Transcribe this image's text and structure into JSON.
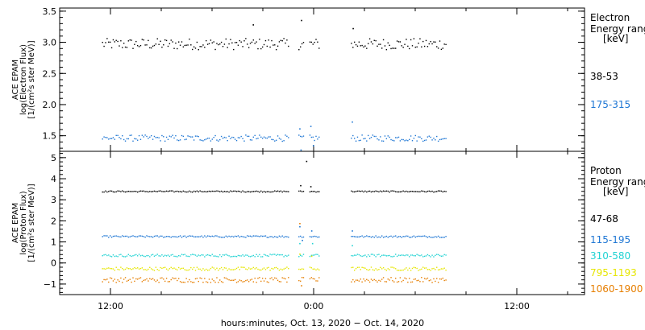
{
  "chart_data": [
    {
      "type": "scatter",
      "panel": "electron",
      "ylabel_lines": [
        "ACE EPAM",
        "log(Electron Flux)",
        "[1/(cm²s ster MeV)]"
      ],
      "ylim": [
        1.25,
        3.55
      ],
      "yticks": [
        1.5,
        2.0,
        2.5,
        3.0,
        3.5
      ],
      "ytick_labels": [
        "1.5",
        "2.0",
        "2.5",
        "3.0",
        "3.5"
      ],
      "legend_title": [
        "Electron",
        "Energy range",
        "[keV]"
      ],
      "series": [
        {
          "name": "38-53",
          "color": "#000000",
          "base": 2.98,
          "jitter": 0.09,
          "segments": [
            [
              -12.5,
              -1.5
            ],
            [
              -0.9,
              -0.6
            ],
            [
              -0.25,
              0.35
            ],
            [
              2.2,
              7.8
            ]
          ],
          "outliers": [
            [
              -3.6,
              3.29
            ],
            [
              -0.75,
              3.36
            ],
            [
              2.3,
              3.23
            ]
          ]
        },
        {
          "name": "175-315",
          "color": "#1f77d4",
          "base": 1.47,
          "jitter": 0.05,
          "segments": [
            [
              -12.5,
              -1.5
            ],
            [
              -0.9,
              -0.6
            ],
            [
              -0.25,
              0.35
            ],
            [
              2.2,
              7.8
            ]
          ],
          "outliers": [
            [
              -0.85,
              1.62
            ],
            [
              -0.78,
              1.28
            ],
            [
              -0.2,
              1.66
            ],
            [
              -0.05,
              1.35
            ],
            [
              2.25,
              1.73
            ]
          ]
        }
      ]
    },
    {
      "type": "scatter",
      "panel": "proton",
      "ylabel_lines": [
        "ACE EPAM",
        "log(Proton Flux)",
        "[1/(cm²s ster MeV)]"
      ],
      "ylim": [
        -1.5,
        5.3
      ],
      "yticks": [
        -1,
        0,
        1,
        2,
        3,
        4,
        5
      ],
      "ytick_labels": [
        "−1",
        "0",
        "1",
        "2",
        "3",
        "4",
        "5"
      ],
      "legend_title": [
        "Proton",
        "Energy range",
        "[keV]"
      ],
      "series": [
        {
          "name": "47-68",
          "color": "#000000",
          "base": 3.42,
          "jitter": 0.03,
          "segments": [
            [
              -12.5,
              -1.5
            ],
            [
              -0.9,
              -0.6
            ],
            [
              -0.25,
              0.35
            ],
            [
              2.2,
              7.8
            ]
          ],
          "outliers": [
            [
              -0.45,
              4.85
            ],
            [
              -0.8,
              3.7
            ],
            [
              -0.2,
              3.65
            ]
          ]
        },
        {
          "name": "115-195",
          "color": "#1f77d4",
          "base": 1.28,
          "jitter": 0.04,
          "segments": [
            [
              -12.5,
              -1.5
            ],
            [
              -0.9,
              -0.6
            ],
            [
              -0.25,
              0.35
            ],
            [
              2.2,
              7.8
            ]
          ],
          "outliers": [
            [
              -0.85,
              1.75
            ],
            [
              -0.7,
              1.1
            ],
            [
              -0.15,
              1.55
            ],
            [
              2.25,
              1.55
            ]
          ]
        },
        {
          "name": "310-580",
          "color": "#22d3d3",
          "base": 0.38,
          "jitter": 0.06,
          "segments": [
            [
              -12.5,
              -1.5
            ],
            [
              -0.9,
              -0.6
            ],
            [
              -0.25,
              0.35
            ],
            [
              2.2,
              7.8
            ]
          ],
          "outliers": [
            [
              -0.85,
              0.95
            ],
            [
              -0.1,
              0.95
            ],
            [
              2.25,
              0.85
            ]
          ]
        },
        {
          "name": "795-1193",
          "color": "#e6e600",
          "base": -0.25,
          "jitter": 0.08,
          "segments": [
            [
              -12.5,
              -1.5
            ],
            [
              -0.9,
              -0.6
            ],
            [
              -0.25,
              0.35
            ],
            [
              2.2,
              7.8
            ]
          ],
          "outliers": [
            [
              -0.85,
              0.45
            ],
            [
              -0.15,
              0.35
            ]
          ]
        },
        {
          "name": "1060-1900",
          "color": "#e67e00",
          "base": -0.78,
          "jitter": 0.12,
          "segments": [
            [
              -12.5,
              -1.5
            ],
            [
              -0.9,
              -0.6
            ],
            [
              -0.25,
              0.35
            ],
            [
              2.2,
              7.8
            ]
          ],
          "outliers": [
            [
              -0.85,
              1.9
            ],
            [
              -0.75,
              -1.05
            ]
          ]
        }
      ]
    }
  ],
  "xaxis": {
    "ticks": [
      -12,
      0,
      12
    ],
    "tick_labels": [
      "12:00",
      "0:00",
      "12:00"
    ],
    "xlim": [
      -15,
      16
    ],
    "label": "hours:minutes, Oct. 13, 2020 − Oct. 14, 2020"
  }
}
